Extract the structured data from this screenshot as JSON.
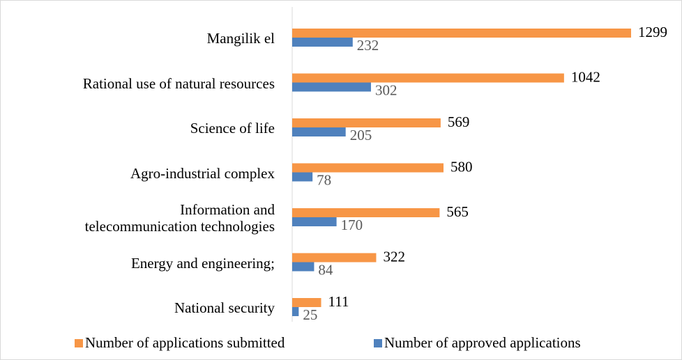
{
  "chart_data": {
    "type": "hbar",
    "categories": [
      "Mangilik el",
      "Rational use of natural resources",
      "Science of life",
      "Agro-industrial complex",
      "Information and\ntelecommunication  technologies",
      "Energy and engineering;",
      "National security"
    ],
    "series": [
      {
        "name": "Number of applications submitted",
        "color": "#f79646",
        "values": [
          1299,
          1042,
          569,
          580,
          565,
          322,
          111
        ]
      },
      {
        "name": "Number of approved applications",
        "color": "#4f81bd",
        "values": [
          232,
          302,
          205,
          78,
          170,
          84,
          25
        ]
      }
    ],
    "legend": "bottom"
  }
}
